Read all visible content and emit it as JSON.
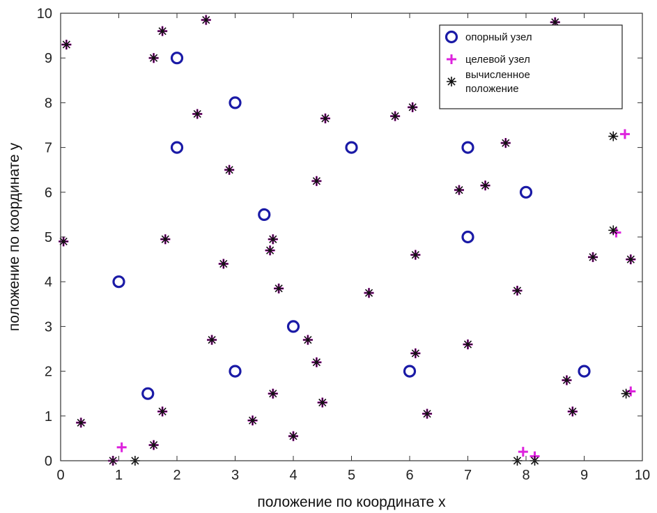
{
  "chart_data": {
    "type": "scatter",
    "title": "",
    "xlabel": "положение по координате x",
    "ylabel": "положение по координате y",
    "xlim": [
      0,
      10
    ],
    "ylim": [
      0,
      10
    ],
    "xticks": [
      "0",
      "1",
      "2",
      "3",
      "4",
      "5",
      "6",
      "7",
      "8",
      "9",
      "10"
    ],
    "yticks": [
      "0",
      "1",
      "2",
      "3",
      "4",
      "5",
      "6",
      "7",
      "8",
      "9",
      "10"
    ],
    "grid": false,
    "legend": "top-right",
    "colors": {
      "anchor": "#1a1aa6",
      "target": "#dd22dd",
      "estimated": "#111111"
    },
    "series": [
      {
        "name": "опорный узел",
        "marker": "circle",
        "points": [
          [
            1,
            4
          ],
          [
            1.5,
            1.5
          ],
          [
            2,
            7
          ],
          [
            2,
            9
          ],
          [
            3,
            2
          ],
          [
            3,
            8
          ],
          [
            3.5,
            5.5
          ],
          [
            4,
            3
          ],
          [
            5,
            7
          ],
          [
            6,
            2
          ],
          [
            7,
            5
          ],
          [
            7,
            7
          ],
          [
            8,
            6
          ],
          [
            9,
            2
          ]
        ]
      },
      {
        "name": "целевой узел",
        "marker": "plus",
        "points": [
          [
            0.1,
            9.3
          ],
          [
            0.05,
            4.9
          ],
          [
            0.35,
            0.85
          ],
          [
            0.9,
            0.0
          ],
          [
            1.05,
            0.3
          ],
          [
            1.6,
            9.0
          ],
          [
            1.75,
            9.6
          ],
          [
            1.75,
            1.1
          ],
          [
            1.8,
            4.95
          ],
          [
            1.6,
            0.35
          ],
          [
            2.35,
            7.75
          ],
          [
            2.5,
            9.85
          ],
          [
            2.6,
            2.7
          ],
          [
            2.8,
            4.4
          ],
          [
            2.9,
            6.5
          ],
          [
            3.3,
            0.9
          ],
          [
            3.6,
            4.7
          ],
          [
            3.65,
            4.95
          ],
          [
            3.65,
            1.5
          ],
          [
            3.75,
            3.85
          ],
          [
            4.0,
            0.55
          ],
          [
            4.25,
            2.7
          ],
          [
            4.4,
            6.25
          ],
          [
            4.4,
            2.2
          ],
          [
            4.5,
            1.3
          ],
          [
            4.55,
            7.65
          ],
          [
            5.3,
            3.75
          ],
          [
            5.75,
            7.7
          ],
          [
            6.05,
            7.9
          ],
          [
            6.1,
            4.6
          ],
          [
            6.1,
            2.4
          ],
          [
            6.3,
            1.05
          ],
          [
            6.85,
            6.05
          ],
          [
            7.0,
            2.6
          ],
          [
            7.3,
            6.15
          ],
          [
            7.65,
            7.1
          ],
          [
            7.85,
            3.8
          ],
          [
            7.95,
            0.2
          ],
          [
            8.15,
            0.1
          ],
          [
            8.5,
            9.8
          ],
          [
            8.7,
            1.8
          ],
          [
            8.8,
            1.1
          ],
          [
            9.15,
            4.55
          ],
          [
            9.55,
            5.1
          ],
          [
            9.7,
            7.3
          ],
          [
            9.8,
            4.5
          ],
          [
            9.8,
            1.55
          ]
        ]
      },
      {
        "name": "вычисленное положение",
        "marker": "asterisk",
        "points": [
          [
            0.1,
            9.3
          ],
          [
            0.05,
            4.9
          ],
          [
            0.35,
            0.85
          ],
          [
            0.9,
            0.0
          ],
          [
            1.28,
            0.0
          ],
          [
            1.6,
            9.0
          ],
          [
            1.75,
            9.6
          ],
          [
            1.75,
            1.1
          ],
          [
            1.8,
            4.95
          ],
          [
            1.6,
            0.35
          ],
          [
            2.35,
            7.75
          ],
          [
            2.5,
            9.85
          ],
          [
            2.6,
            2.7
          ],
          [
            2.8,
            4.4
          ],
          [
            2.9,
            6.5
          ],
          [
            3.3,
            0.9
          ],
          [
            3.6,
            4.7
          ],
          [
            3.65,
            4.95
          ],
          [
            3.65,
            1.5
          ],
          [
            3.75,
            3.85
          ],
          [
            4.0,
            0.55
          ],
          [
            4.25,
            2.7
          ],
          [
            4.4,
            6.25
          ],
          [
            4.4,
            2.2
          ],
          [
            4.5,
            1.3
          ],
          [
            4.55,
            7.65
          ],
          [
            5.3,
            3.75
          ],
          [
            5.75,
            7.7
          ],
          [
            6.05,
            7.9
          ],
          [
            6.1,
            4.6
          ],
          [
            6.1,
            2.4
          ],
          [
            6.3,
            1.05
          ],
          [
            6.85,
            6.05
          ],
          [
            7.0,
            2.6
          ],
          [
            7.3,
            6.15
          ],
          [
            7.65,
            7.1
          ],
          [
            7.85,
            3.8
          ],
          [
            7.85,
            0.0
          ],
          [
            8.15,
            0.0
          ],
          [
            8.5,
            9.8
          ],
          [
            8.7,
            1.8
          ],
          [
            8.8,
            1.1
          ],
          [
            9.15,
            4.55
          ],
          [
            9.5,
            5.15
          ],
          [
            9.5,
            7.25
          ],
          [
            9.8,
            4.5
          ],
          [
            9.72,
            1.5
          ]
        ]
      }
    ]
  }
}
